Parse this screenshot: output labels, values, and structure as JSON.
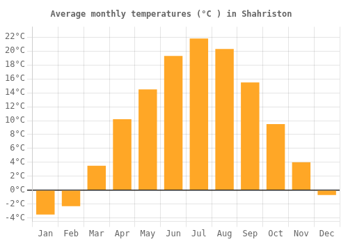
{
  "chart_data": {
    "type": "bar",
    "title": "Average monthly temperatures (°C ) in Shahriston",
    "categories": [
      "Jan",
      "Feb",
      "Mar",
      "Apr",
      "May",
      "Jun",
      "Jul",
      "Aug",
      "Sep",
      "Oct",
      "Nov",
      "Dec"
    ],
    "values": [
      -3.5,
      -2.3,
      3.5,
      10.2,
      14.5,
      19.3,
      21.8,
      20.3,
      15.5,
      9.5,
      4.0,
      -0.7
    ],
    "color": "#FFA726",
    "ylim": [
      -4.5,
      23.5
    ],
    "yticks": [
      {
        "value": -4,
        "label": "-4°C"
      },
      {
        "value": -2,
        "label": "-2°C"
      },
      {
        "value": 0,
        "label": "0°C"
      },
      {
        "value": 2,
        "label": "2°C"
      },
      {
        "value": 4,
        "label": "4°C"
      },
      {
        "value": 6,
        "label": "6°C"
      },
      {
        "value": 8,
        "label": "8°C"
      },
      {
        "value": 10,
        "label": "10°C"
      },
      {
        "value": 12,
        "label": "12°C"
      },
      {
        "value": 14,
        "label": "14°C"
      },
      {
        "value": 16,
        "label": "16°C"
      },
      {
        "value": 18,
        "label": "18°C"
      },
      {
        "value": 20,
        "label": "20°C"
      },
      {
        "value": 22,
        "label": "22°C"
      }
    ],
    "grid": true
  }
}
